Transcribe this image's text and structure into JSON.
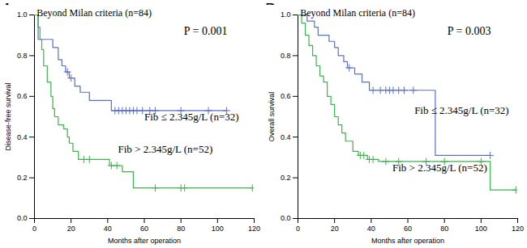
{
  "chart_data": [
    {
      "type": "step",
      "panel": "A",
      "title": "Beyond Milan criteria (n=84)",
      "annotation": "P = 0.001",
      "x_label": "Months after operation",
      "y_label": "Disease-free survival",
      "xlim": [
        0,
        120
      ],
      "xticks": [
        0,
        20,
        40,
        60,
        80,
        100,
        120
      ],
      "ylim": [
        0,
        1
      ],
      "yticks": [
        {
          "value": 0,
          "label": "0.0"
        },
        {
          "value": 0.2,
          "label": "0.2"
        },
        {
          "value": 0.4,
          "label": "0.4"
        },
        {
          "value": 0.6,
          "label": "0.6"
        },
        {
          "value": 0.8,
          "label": "0.8"
        },
        {
          "value": 1,
          "label": "1.0"
        }
      ],
      "series": [
        {
          "name": "Fib ≤ 2.345g/L (n=32)",
          "color": "#5a6fc8",
          "marker": "plus",
          "x": [
            0,
            2,
            10,
            13,
            15,
            17,
            19,
            22,
            25,
            30,
            42,
            105
          ],
          "values": [
            1.0,
            0.88,
            0.84,
            0.78,
            0.75,
            0.72,
            0.69,
            0.65,
            0.62,
            0.58,
            0.53,
            0.53
          ],
          "censored_x": [
            18,
            20,
            44,
            46,
            48,
            50,
            52,
            54,
            56,
            59,
            63,
            66,
            80,
            95,
            105
          ],
          "censored_values": [
            0.72,
            0.69,
            0.53,
            0.53,
            0.53,
            0.53,
            0.53,
            0.53,
            0.53,
            0.53,
            0.53,
            0.53,
            0.53,
            0.53,
            0.53
          ]
        },
        {
          "name": "Fib > 2.345g/L (n=52)",
          "color": "#3cb44b",
          "marker": "plus",
          "x": [
            0,
            2,
            3,
            4,
            5,
            7,
            9,
            10,
            11,
            13,
            16,
            18,
            19,
            21,
            24,
            41,
            48,
            54,
            119
          ],
          "values": [
            1.0,
            0.94,
            0.88,
            0.83,
            0.75,
            0.67,
            0.6,
            0.54,
            0.5,
            0.46,
            0.44,
            0.4,
            0.37,
            0.33,
            0.29,
            0.26,
            0.23,
            0.15,
            0.15
          ],
          "censored_x": [
            27,
            30,
            42,
            45,
            66,
            80,
            82,
            119
          ],
          "censored_values": [
            0.29,
            0.29,
            0.26,
            0.26,
            0.15,
            0.15,
            0.15,
            0.15
          ]
        }
      ]
    },
    {
      "type": "step",
      "panel": "B",
      "title": "Beyond Milan criteria (n=84)",
      "annotation": "P = 0.003",
      "x_label": "Months after operation",
      "y_label": "Overall survival",
      "xlim": [
        0,
        120
      ],
      "xticks": [
        0,
        20,
        40,
        60,
        80,
        100,
        120
      ],
      "ylim": [
        0,
        1
      ],
      "yticks": [
        {
          "value": 0,
          "label": "0.0"
        },
        {
          "value": 0.2,
          "label": "0.2"
        },
        {
          "value": 0.4,
          "label": "0.4"
        },
        {
          "value": 0.6,
          "label": "0.6"
        },
        {
          "value": 0.8,
          "label": "0.8"
        },
        {
          "value": 1,
          "label": "1.0"
        }
      ],
      "series": [
        {
          "name": "Fib ≤ 2.345g/L (n=32)",
          "color": "#5a6fc8",
          "marker": "plus",
          "x": [
            0,
            5,
            9,
            11,
            17,
            20,
            22,
            25,
            27,
            31,
            35,
            39,
            75,
            105
          ],
          "values": [
            1.0,
            0.97,
            0.94,
            0.9,
            0.87,
            0.84,
            0.8,
            0.77,
            0.74,
            0.71,
            0.67,
            0.63,
            0.31,
            0.31
          ],
          "censored_x": [
            28,
            41,
            45,
            48,
            50,
            52,
            55,
            58,
            63,
            105
          ],
          "censored_values": [
            0.74,
            0.63,
            0.63,
            0.63,
            0.63,
            0.63,
            0.63,
            0.63,
            0.63,
            0.31
          ]
        },
        {
          "name": "Fib > 2.345g/L (n=52)",
          "color": "#3cb44b",
          "marker": "plus",
          "x": [
            0,
            2,
            4,
            6,
            8,
            10,
            12,
            14,
            16,
            18,
            20,
            22,
            24,
            26,
            30,
            33,
            38,
            44,
            105,
            119
          ],
          "values": [
            1.0,
            0.96,
            0.9,
            0.85,
            0.8,
            0.75,
            0.7,
            0.67,
            0.6,
            0.56,
            0.5,
            0.46,
            0.42,
            0.38,
            0.33,
            0.31,
            0.29,
            0.28,
            0.14,
            0.14
          ],
          "censored_x": [
            34,
            36,
            39,
            41,
            48,
            55,
            70,
            80,
            100,
            119
          ],
          "censored_values": [
            0.31,
            0.31,
            0.29,
            0.29,
            0.28,
            0.28,
            0.28,
            0.28,
            0.28,
            0.14
          ]
        }
      ]
    }
  ]
}
